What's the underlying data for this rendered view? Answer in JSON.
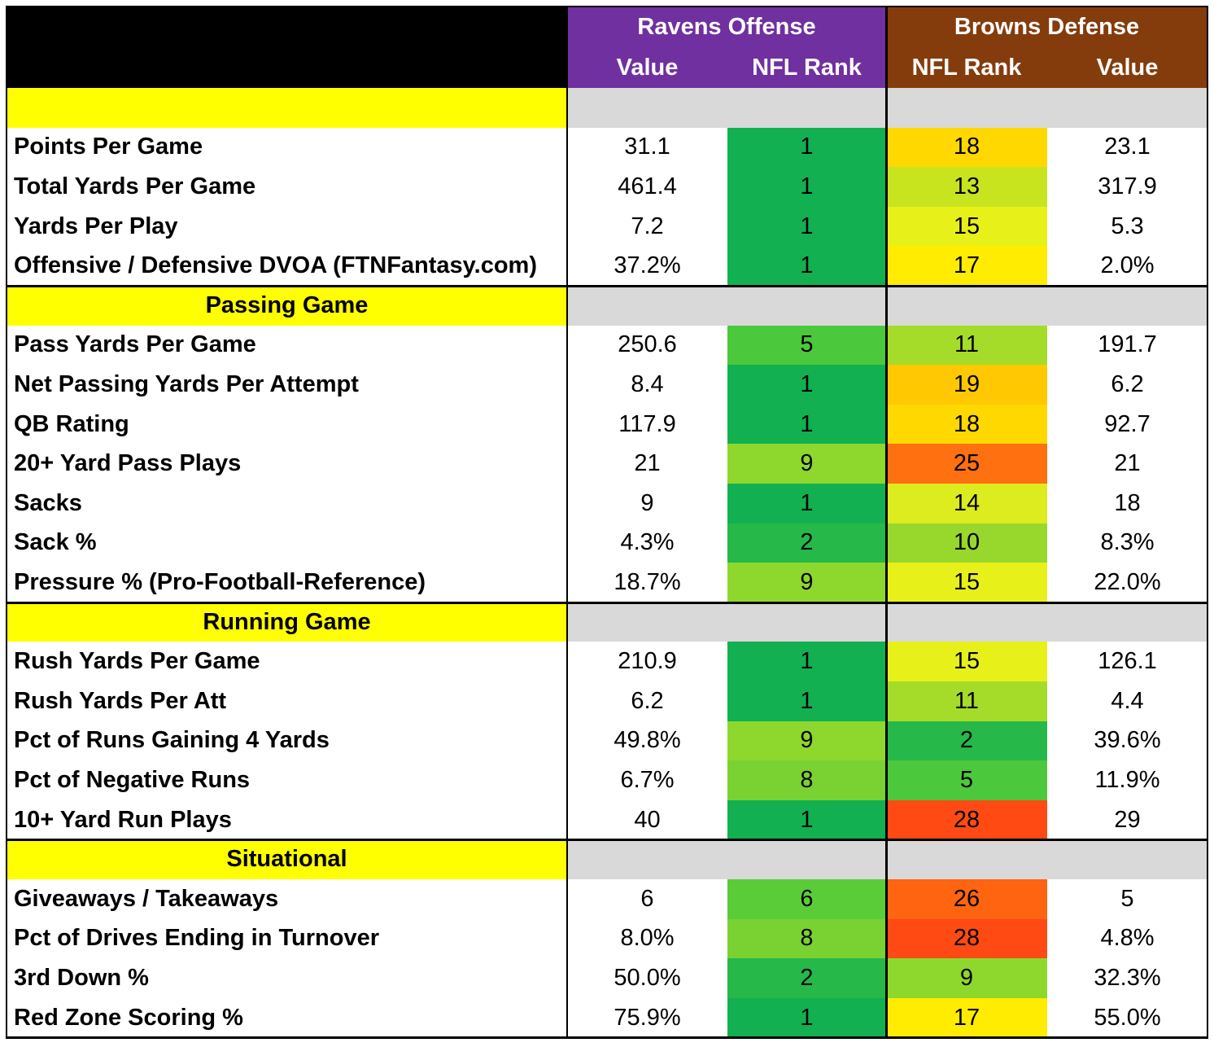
{
  "header": {
    "offense_title": "Ravens Offense",
    "defense_title": "Browns Defense",
    "offense_value_label": "Value",
    "offense_rank_label": "NFL Rank",
    "defense_rank_label": "NFL Rank",
    "defense_value_label": "Value"
  },
  "colors": {
    "offense_header": "#7030A0",
    "defense_header": "#843C0C",
    "section_label_bg": "#FFFF00",
    "section_bar_bg": "#D9D9D9",
    "top_left_bg": "#000000"
  },
  "sections": [
    {
      "title": "",
      "rows": [
        {
          "label": "Points Per Game",
          "off_value": "31.1",
          "off_rank": "1",
          "off_color": "#12B050",
          "def_rank": "18",
          "def_color": "#FFD800",
          "def_value": "23.1"
        },
        {
          "label": "Total Yards Per Game",
          "off_value": "461.4",
          "off_rank": "1",
          "off_color": "#12B050",
          "def_rank": "13",
          "def_color": "#C8E41E",
          "def_value": "317.9"
        },
        {
          "label": "Yards Per Play",
          "off_value": "7.2",
          "off_rank": "1",
          "off_color": "#12B050",
          "def_rank": "15",
          "def_color": "#E8F01A",
          "def_value": "5.3"
        },
        {
          "label": "Offensive / Defensive DVOA (FTNFantasy.com)",
          "off_value": "37.2%",
          "off_rank": "1",
          "off_color": "#12B050",
          "def_rank": "17",
          "def_color": "#FFEC00",
          "def_value": "2.0%"
        }
      ]
    },
    {
      "title": "Passing Game",
      "rows": [
        {
          "label": "Pass Yards Per Game",
          "off_value": "250.6",
          "off_rank": "5",
          "off_color": "#4CC83C",
          "def_rank": "11",
          "def_color": "#A5DC2A",
          "def_value": "191.7"
        },
        {
          "label": "Net Passing Yards Per Attempt",
          "off_value": "8.4",
          "off_rank": "1",
          "off_color": "#12B050",
          "def_rank": "19",
          "def_color": "#FFC800",
          "def_value": "6.2"
        },
        {
          "label": "QB Rating",
          "off_value": "117.9",
          "off_rank": "1",
          "off_color": "#12B050",
          "def_rank": "18",
          "def_color": "#FFD800",
          "def_value": "92.7"
        },
        {
          "label": "20+ Yard Pass Plays",
          "off_value": "21",
          "off_rank": "9",
          "off_color": "#8ED82E",
          "def_rank": "25",
          "def_color": "#FF7010",
          "def_value": "21"
        },
        {
          "label": "Sacks",
          "off_value": "9",
          "off_rank": "1",
          "off_color": "#12B050",
          "def_rank": "14",
          "def_color": "#DCEC1E",
          "def_value": "18"
        },
        {
          "label": "Sack %",
          "off_value": "4.3%",
          "off_rank": "2",
          "off_color": "#26B848",
          "def_rank": "10",
          "def_color": "#98D82C",
          "def_value": "8.3%"
        },
        {
          "label": "Pressure % (Pro-Football-Reference)",
          "off_value": "18.7%",
          "off_rank": "9",
          "off_color": "#8ED82E",
          "def_rank": "15",
          "def_color": "#E8F01A",
          "def_value": "22.0%"
        }
      ]
    },
    {
      "title": "Running Game",
      "rows": [
        {
          "label": "Rush Yards Per Game",
          "off_value": "210.9",
          "off_rank": "1",
          "off_color": "#12B050",
          "def_rank": "15",
          "def_color": "#E8F01A",
          "def_value": "126.1"
        },
        {
          "label": "Rush Yards Per Att",
          "off_value": "6.2",
          "off_rank": "1",
          "off_color": "#12B050",
          "def_rank": "11",
          "def_color": "#A5DC2A",
          "def_value": "4.4"
        },
        {
          "label": "Pct of Runs Gaining 4 Yards",
          "off_value": "49.8%",
          "off_rank": "9",
          "off_color": "#8ED82E",
          "def_rank": "2",
          "def_color": "#26B848",
          "def_value": "39.6%"
        },
        {
          "label": "Pct of Negative Runs",
          "off_value": "6.7%",
          "off_rank": "8",
          "off_color": "#7AD232",
          "def_rank": "5",
          "def_color": "#4CC83C",
          "def_value": "11.9%"
        },
        {
          "label": "10+ Yard Run Plays",
          "off_value": "40",
          "off_rank": "1",
          "off_color": "#12B050",
          "def_rank": "28",
          "def_color": "#FF4A14",
          "def_value": "29"
        }
      ]
    },
    {
      "title": "Situational",
      "rows": [
        {
          "label": "Giveaways / Takeaways",
          "off_value": "6",
          "off_rank": "6",
          "off_color": "#5ACC38",
          "def_rank": "26",
          "def_color": "#FF6410",
          "def_value": "5"
        },
        {
          "label": "Pct of Drives Ending in Turnover",
          "off_value": "8.0%",
          "off_rank": "8",
          "off_color": "#7AD232",
          "def_rank": "28",
          "def_color": "#FF4A14",
          "def_value": "4.8%"
        },
        {
          "label": "3rd Down %",
          "off_value": "50.0%",
          "off_rank": "2",
          "off_color": "#26B848",
          "def_rank": "9",
          "def_color": "#8ED82E",
          "def_value": "32.3%"
        },
        {
          "label": "Red Zone Scoring %",
          "off_value": "75.9%",
          "off_rank": "1",
          "off_color": "#12B050",
          "def_rank": "17",
          "def_color": "#FFEC00",
          "def_value": "55.0%"
        }
      ]
    }
  ]
}
